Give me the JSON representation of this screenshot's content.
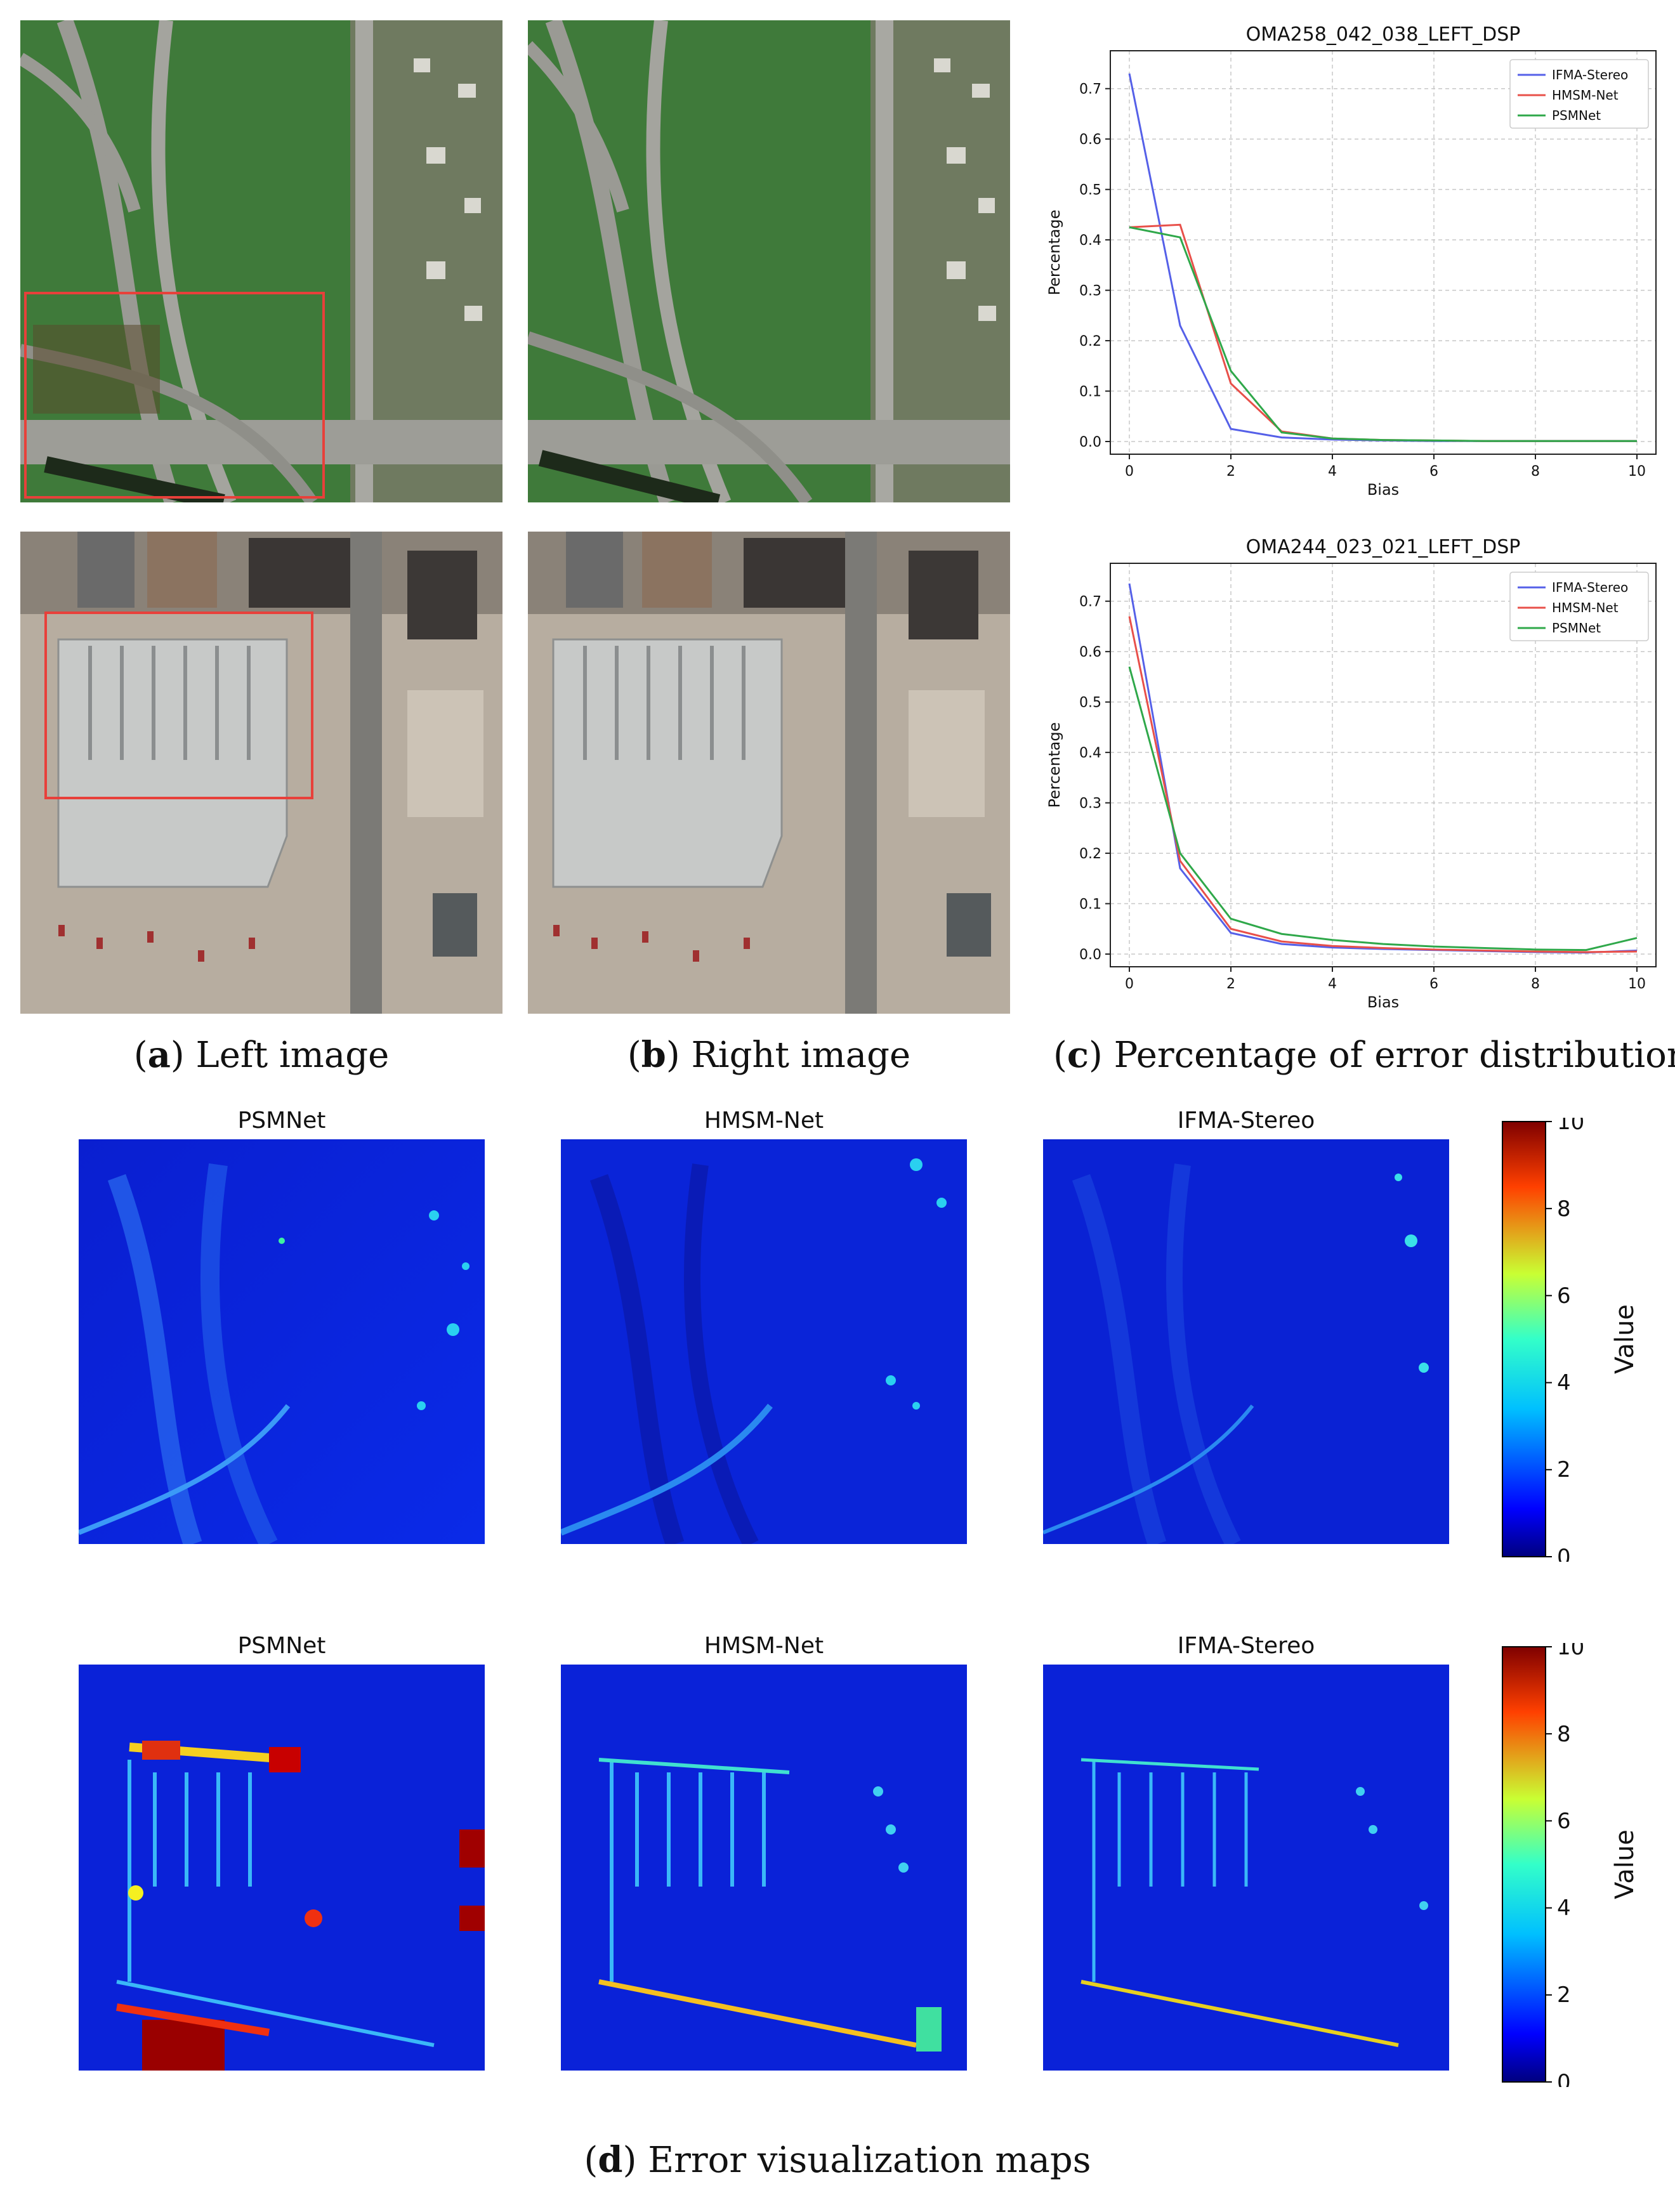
{
  "captions": {
    "a": {
      "letter": "a",
      "text": " Left image"
    },
    "b": {
      "letter": "b",
      "text": " Right image"
    },
    "c": {
      "letter": "c",
      "text": " Percentage of error distribution"
    },
    "d": {
      "letter": "d",
      "text": " Error visualization maps"
    }
  },
  "map_titles": {
    "row1": [
      "PSMNet",
      "HMSM-Net",
      "IFMA-Stereo"
    ],
    "row2": [
      "PSMNet",
      "HMSM-Net",
      "IFMA-Stereo"
    ]
  },
  "colorbar": {
    "label": "Value",
    "ticks": [
      "0",
      "2",
      "4",
      "6",
      "8",
      "10"
    ]
  },
  "chart_data": [
    {
      "type": "line",
      "title": "OMA258_042_038_LEFT_DSP",
      "xlabel": "Bias",
      "ylabel": "Percentage",
      "xlim": [
        0,
        10
      ],
      "ylim": [
        0,
        0.75
      ],
      "xticks": [
        0,
        2,
        4,
        6,
        8,
        10
      ],
      "yticks": [
        0.0,
        0.1,
        0.2,
        0.3,
        0.4,
        0.5,
        0.6,
        0.7
      ],
      "grid": true,
      "legend": "top-right",
      "x": [
        0,
        1,
        2,
        3,
        4,
        5,
        6,
        7,
        8,
        9,
        10
      ],
      "series": [
        {
          "name": "IFMA-Stereo",
          "color": "#5560e8",
          "values": [
            0.73,
            0.23,
            0.025,
            0.008,
            0.004,
            0.002,
            0.001,
            0.001,
            0.001,
            0.001,
            0.001
          ]
        },
        {
          "name": "HMSM-Net",
          "color": "#e8504a",
          "values": [
            0.425,
            0.43,
            0.115,
            0.02,
            0.006,
            0.003,
            0.002,
            0.001,
            0.001,
            0.001,
            0.001
          ]
        },
        {
          "name": "PSMNet",
          "color": "#2fa84a",
          "values": [
            0.425,
            0.405,
            0.14,
            0.018,
            0.006,
            0.003,
            0.002,
            0.001,
            0.001,
            0.001,
            0.001
          ]
        }
      ]
    },
    {
      "type": "line",
      "title": "OMA244_023_021_LEFT_DSP",
      "xlabel": "Bias",
      "ylabel": "Percentage",
      "xlim": [
        0,
        10
      ],
      "ylim": [
        0,
        0.75
      ],
      "xticks": [
        0,
        2,
        4,
        6,
        8,
        10
      ],
      "yticks": [
        0.0,
        0.1,
        0.2,
        0.3,
        0.4,
        0.5,
        0.6,
        0.7
      ],
      "grid": true,
      "legend": "top-right",
      "x": [
        0,
        1,
        2,
        3,
        4,
        5,
        6,
        7,
        8,
        9,
        10
      ],
      "series": [
        {
          "name": "IFMA-Stereo",
          "color": "#5560e8",
          "values": [
            0.735,
            0.17,
            0.042,
            0.02,
            0.013,
            0.01,
            0.008,
            0.006,
            0.004,
            0.003,
            0.007
          ]
        },
        {
          "name": "HMSM-Net",
          "color": "#e8504a",
          "values": [
            0.67,
            0.185,
            0.05,
            0.025,
            0.016,
            0.012,
            0.009,
            0.007,
            0.005,
            0.004,
            0.005
          ]
        },
        {
          "name": "PSMNet",
          "color": "#2fa84a",
          "values": [
            0.57,
            0.2,
            0.07,
            0.04,
            0.028,
            0.02,
            0.015,
            0.012,
            0.009,
            0.008,
            0.032
          ]
        }
      ]
    }
  ]
}
